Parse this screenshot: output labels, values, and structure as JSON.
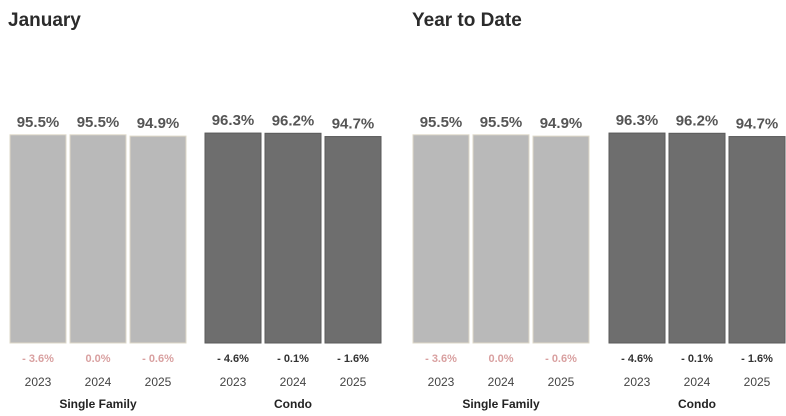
{
  "colors": {
    "single_family": "#b9b9b9",
    "condo": "#6e6e6e",
    "change_negative_single_family": "#d9a0a0",
    "change_condo": "#333333"
  },
  "chart_data": [
    {
      "type": "bar",
      "title": "January",
      "categories": [
        "2023",
        "2024",
        "2025"
      ],
      "series": [
        {
          "name": "Single Family",
          "values": [
            95.5,
            95.5,
            94.9
          ],
          "labels": [
            "95.5%",
            "95.5%",
            "94.9%"
          ],
          "changes": [
            "- 3.6%",
            "0.0%",
            "- 0.6%"
          ]
        },
        {
          "name": "Condo",
          "values": [
            96.3,
            96.2,
            94.7
          ],
          "labels": [
            "96.3%",
            "96.2%",
            "94.7%"
          ],
          "changes": [
            "- 4.6%",
            "- 0.1%",
            "- 1.6%"
          ]
        }
      ]
    },
    {
      "type": "bar",
      "title": "Year to Date",
      "categories": [
        "2023",
        "2024",
        "2025"
      ],
      "series": [
        {
          "name": "Single Family",
          "values": [
            95.5,
            95.5,
            94.9
          ],
          "labels": [
            "95.5%",
            "95.5%",
            "94.9%"
          ],
          "changes": [
            "- 3.6%",
            "0.0%",
            "- 0.6%"
          ]
        },
        {
          "name": "Condo",
          "values": [
            96.3,
            96.2,
            94.7
          ],
          "labels": [
            "96.3%",
            "96.2%",
            "94.7%"
          ],
          "changes": [
            "- 4.6%",
            "- 0.1%",
            "- 1.6%"
          ]
        }
      ]
    }
  ]
}
